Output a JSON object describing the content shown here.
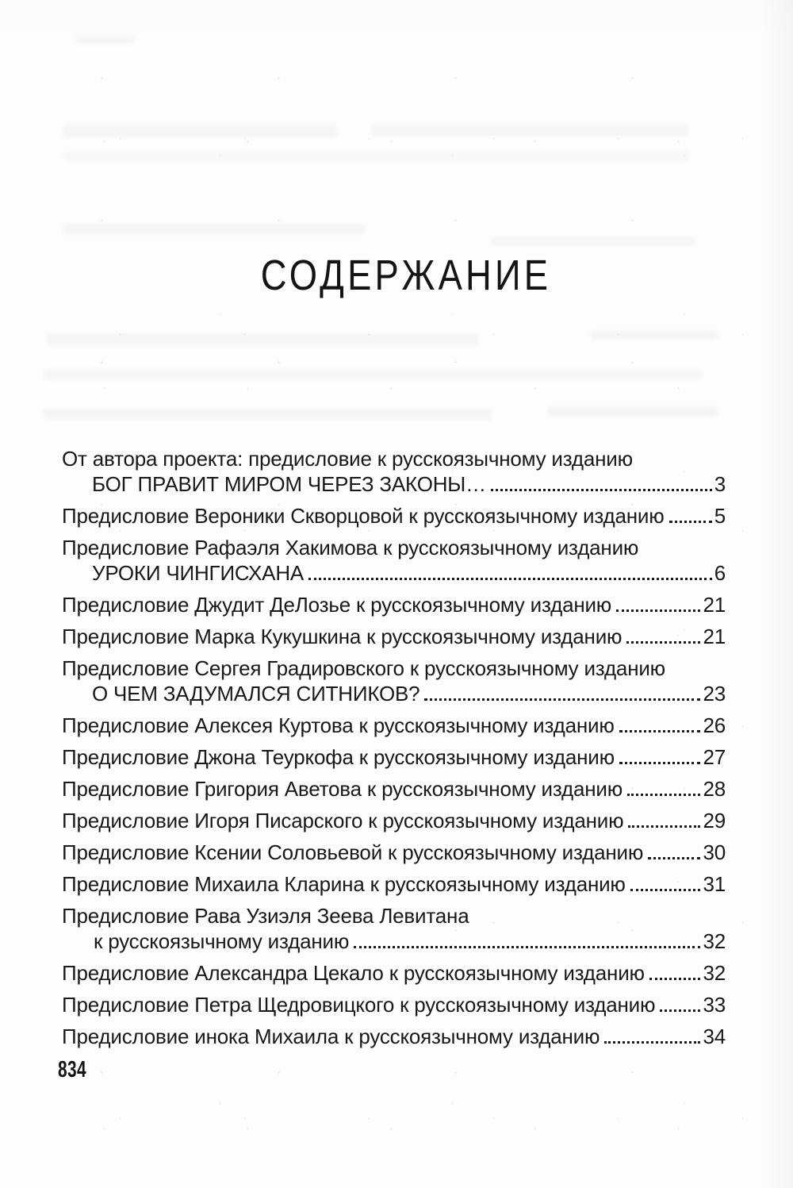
{
  "page": {
    "title": "СОДЕРЖАНИЕ",
    "folio": "834"
  },
  "colors": {
    "ink": "#191919",
    "paper": "#fdfdfc"
  },
  "toc": {
    "entries": [
      {
        "lines": [
          {
            "text": "От автора проекта: предисловие к русскоязычному изданию",
            "style": "plain"
          },
          {
            "text": "БОГ ПРАВИТ МИРОМ ЧЕРЕЗ ЗАКОНЫ…",
            "style": "indent-caps",
            "page": "3"
          }
        ]
      },
      {
        "lines": [
          {
            "text": "Предисловие Вероники Скворцовой к русскоязычному изданию",
            "style": "plain",
            "page": "5"
          }
        ]
      },
      {
        "lines": [
          {
            "text": "Предисловие Рафаэля Хакимова к русскоязычному изданию",
            "style": "plain"
          },
          {
            "text": "УРОКИ ЧИНГИСХАНА",
            "style": "indent-caps",
            "page": "6"
          }
        ]
      },
      {
        "lines": [
          {
            "text": "Предисловие Джудит ДеЛозье к русскоязычному изданию",
            "style": "plain",
            "page": "21"
          }
        ]
      },
      {
        "lines": [
          {
            "text": "Предисловие Марка Кукушкина к русскоязычному изданию",
            "style": "plain",
            "page": "21"
          }
        ]
      },
      {
        "lines": [
          {
            "text": "Предисловие Сергея Градировского к русскоязычному изданию",
            "style": "plain"
          },
          {
            "text": "О ЧЕМ ЗАДУМАЛСЯ СИТНИКОВ?",
            "style": "indent-caps",
            "page": "23"
          }
        ]
      },
      {
        "lines": [
          {
            "text": "Предисловие Алексея Куртова к русскоязычному изданию",
            "style": "plain",
            "page": "26"
          }
        ]
      },
      {
        "lines": [
          {
            "text": "Предисловие Джона Теуркофа к русскоязычному изданию",
            "style": "plain",
            "page": "27"
          }
        ]
      },
      {
        "lines": [
          {
            "text": "Предисловие Григория Аветова к русскоязычному изданию",
            "style": "plain",
            "page": "28"
          }
        ]
      },
      {
        "lines": [
          {
            "text": "Предисловие Игоря Писарского к русскоязычному изданию",
            "style": "plain",
            "page": "29"
          }
        ]
      },
      {
        "lines": [
          {
            "text": "Предисловие Ксении Соловьевой к русскоязычному изданию",
            "style": "plain",
            "page": "30"
          }
        ]
      },
      {
        "lines": [
          {
            "text": "Предисловие Михаила Кларина к русскоязычному изданию",
            "style": "plain",
            "page": "31"
          }
        ]
      },
      {
        "lines": [
          {
            "text": "Предисловие Рава Узиэля Зеева Левитана",
            "style": "plain"
          },
          {
            "text": "к русскоязычному изданию",
            "style": "indent-cont",
            "page": "32"
          }
        ]
      },
      {
        "lines": [
          {
            "text": "Предисловие Александра Цекало к русскоязычному изданию",
            "style": "plain",
            "page": "32"
          }
        ]
      },
      {
        "lines": [
          {
            "text": "Предисловие Петра Щедровицкого к русскоязычному изданию",
            "style": "plain",
            "page": "33"
          }
        ]
      },
      {
        "lines": [
          {
            "text": "Предисловие инока Михаила к русскоязычному изданию",
            "style": "plain",
            "page": "34"
          }
        ]
      }
    ]
  }
}
